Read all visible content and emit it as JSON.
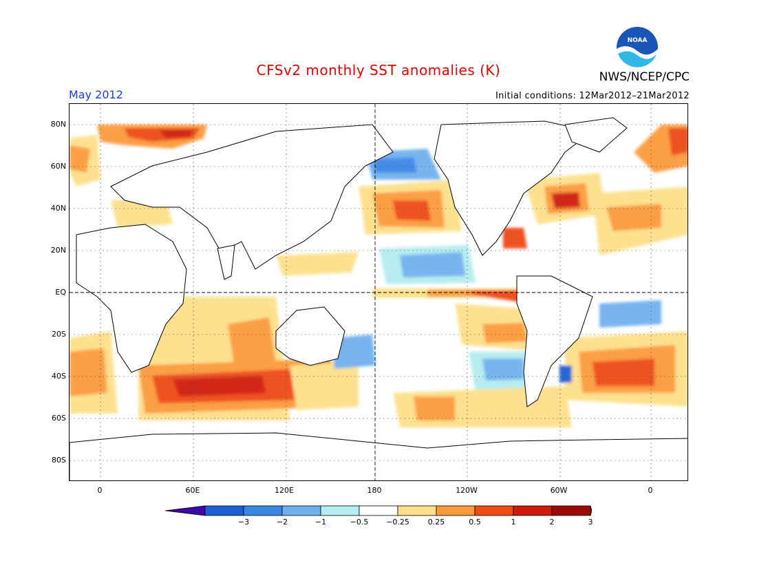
{
  "header": {
    "title": "CFSv2 monthly SST anomalies (K)",
    "month": "May 2012",
    "initial_conditions": "Initial conditions: 12Mar2012–21Mar2012",
    "agency": "NWS/NCEP/CPC",
    "logo_text": "NOAA"
  },
  "map": {
    "projection": "cylindrical equidistant",
    "lat_labels": [
      "80N",
      "60N",
      "40N",
      "20N",
      "EQ",
      "20S",
      "40S",
      "60S",
      "80S"
    ],
    "lon_labels": [
      "0",
      "60E",
      "120E",
      "180",
      "120W",
      "60W",
      "0"
    ],
    "reference_lines": [
      "equator",
      "180 meridian"
    ]
  },
  "colorbar": {
    "tick_labels": [
      "−3",
      "−2",
      "−1",
      "−0.5",
      "−0.25",
      "0.25",
      "0.5",
      "1",
      "2",
      "3"
    ],
    "colors": [
      "#3b0aa8",
      "#1c5fd4",
      "#3a86e6",
      "#6fb1f0",
      "#b4ecf0",
      "#ffffff",
      "#fde08a",
      "#fb9a3a",
      "#ee4a12",
      "#cf1a10",
      "#9b0a08",
      "#7a5540"
    ]
  }
}
